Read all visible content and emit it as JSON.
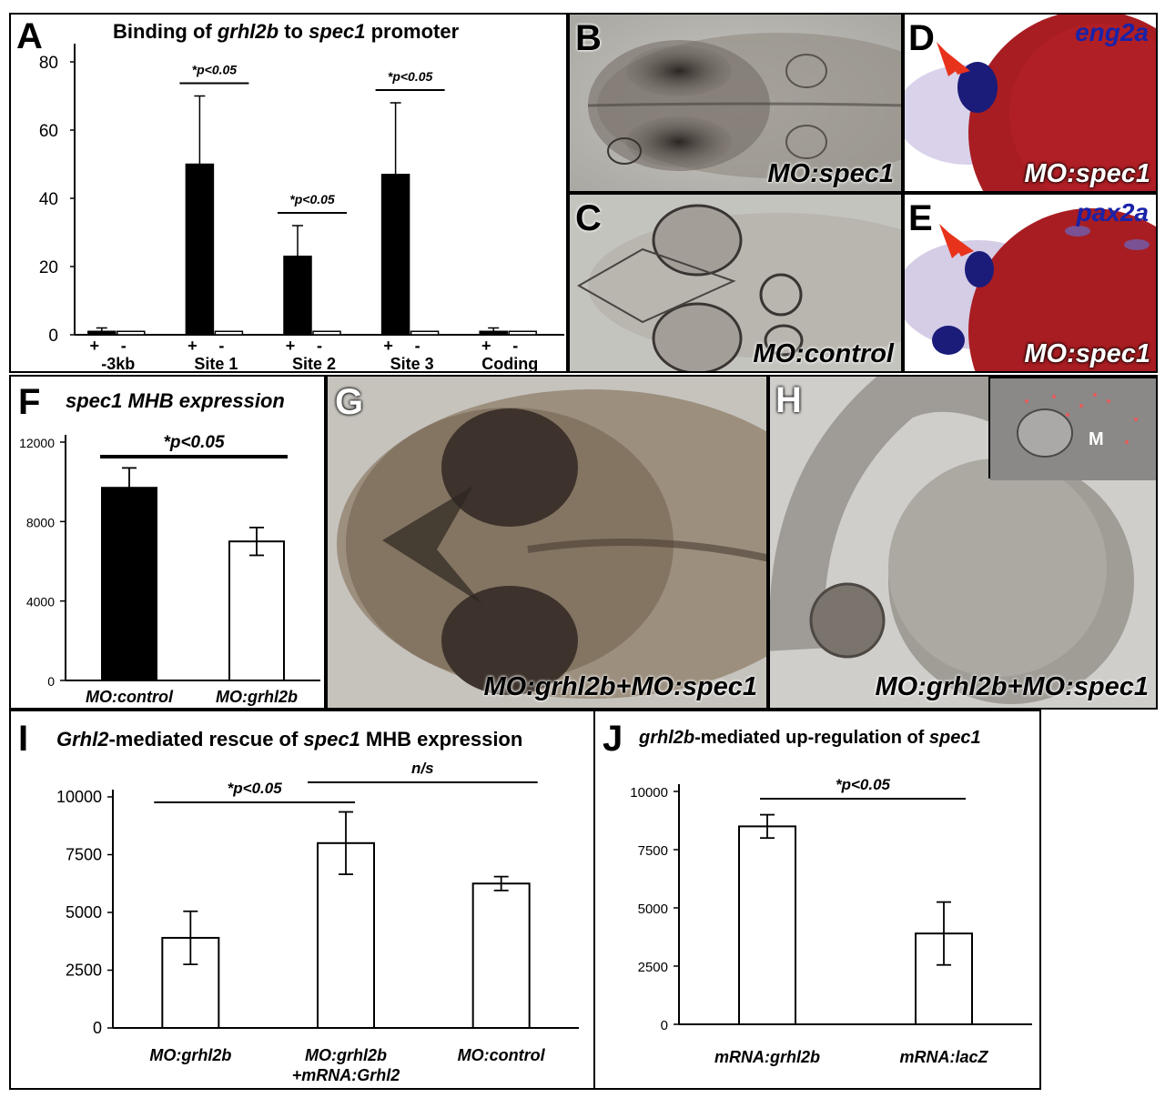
{
  "panels": {
    "A": {
      "letter": "A",
      "title_parts": [
        "Binding of ",
        "grhl2b",
        " to ",
        "spec1",
        " promoter"
      ]
    },
    "B": {
      "letter": "B",
      "label": "MO:spec1"
    },
    "C": {
      "letter": "C",
      "label": "MO:control"
    },
    "D": {
      "letter": "D",
      "gene": "eng2a",
      "label": "MO:spec1"
    },
    "E": {
      "letter": "E",
      "gene": "pax2a",
      "label": "MO:spec1"
    },
    "F": {
      "letter": "F",
      "title": "spec1 MHB expression"
    },
    "G": {
      "letter": "G",
      "label": "MO:grhl2b+MO:spec1"
    },
    "H": {
      "letter": "H",
      "label": "MO:grhl2b+MO:spec1",
      "inset_label": "M"
    },
    "I": {
      "letter": "I",
      "title_parts": [
        "Grhl2",
        "-mediated rescue of ",
        "spec1",
        " MHB expression"
      ]
    },
    "J": {
      "letter": "J",
      "title_parts": [
        "grhl2b",
        "-mediated up-regulation of ",
        "spec1"
      ]
    }
  },
  "colors": {
    "bar_black": "#000000",
    "bar_white": "#ffffff",
    "embryo_probe": "#1b1b7a",
    "yolk_red": "#a81d22",
    "arrow_red": "#e8331c",
    "gene_text": "#1a22a8"
  },
  "chart_data": [
    {
      "id": "A",
      "type": "bar",
      "title": "Binding of grhl2b to spec1 promoter",
      "categories": [
        "-3kb",
        "Site 1",
        "Site 2",
        "Site 3",
        "Coding"
      ],
      "sub_labels": [
        "+",
        "-"
      ],
      "series": [
        {
          "fill": "black",
          "values": [
            1,
            50,
            23,
            47,
            1
          ],
          "errors": [
            1,
            20,
            9,
            21,
            1
          ]
        },
        {
          "fill": "white",
          "values": [
            1,
            1,
            1,
            1,
            1
          ],
          "errors": [
            0,
            0,
            0,
            0,
            0
          ]
        }
      ],
      "ylim": [
        0,
        80
      ],
      "yticks": [
        0,
        20,
        40,
        60,
        80
      ],
      "significance": [
        {
          "label": "*p<0.05",
          "category": 1
        },
        {
          "label": "*p<0.05",
          "category": 2
        },
        {
          "label": "*p<0.05",
          "category": 3
        }
      ]
    },
    {
      "id": "F",
      "type": "bar",
      "title": "spec1 MHB expression",
      "categories": [
        "MO:control",
        "MO:grhl2b"
      ],
      "values": [
        9700,
        7000
      ],
      "errors": [
        1000,
        700
      ],
      "fills": [
        "black",
        "white"
      ],
      "ylim": [
        0,
        12000
      ],
      "yticks": [
        0,
        4000,
        8000,
        12000
      ],
      "significance": [
        {
          "label": "*p<0.05",
          "from": 0,
          "to": 1
        }
      ]
    },
    {
      "id": "I",
      "type": "bar",
      "title": "Grhl2-mediated rescue of spec1 MHB expression",
      "categories": [
        "MO:grhl2b",
        "MO:grhl2b\n+mRNA:Grhl2",
        "MO:control"
      ],
      "values": [
        3900,
        8000,
        6250
      ],
      "errors": [
        1150,
        1350,
        300
      ],
      "fills": [
        "white",
        "white",
        "white"
      ],
      "ylim": [
        0,
        10000
      ],
      "yticks": [
        0,
        2500,
        5000,
        7500,
        10000
      ],
      "significance": [
        {
          "label": "*p<0.05",
          "from": 0,
          "to": 1
        },
        {
          "label": "n/s",
          "from": 1,
          "to": 2
        }
      ]
    },
    {
      "id": "J",
      "type": "bar",
      "title": "grhl2b-mediated up-regulation of spec1",
      "categories": [
        "mRNA:grhl2b",
        "mRNA:lacZ"
      ],
      "values": [
        8500,
        3900
      ],
      "errors": [
        500,
        1350
      ],
      "fills": [
        "white",
        "white"
      ],
      "ylim": [
        0,
        10000
      ],
      "yticks": [
        0,
        2500,
        5000,
        7500,
        10000
      ],
      "significance": [
        {
          "label": "*p<0.05",
          "from": 0,
          "to": 1
        }
      ]
    }
  ]
}
